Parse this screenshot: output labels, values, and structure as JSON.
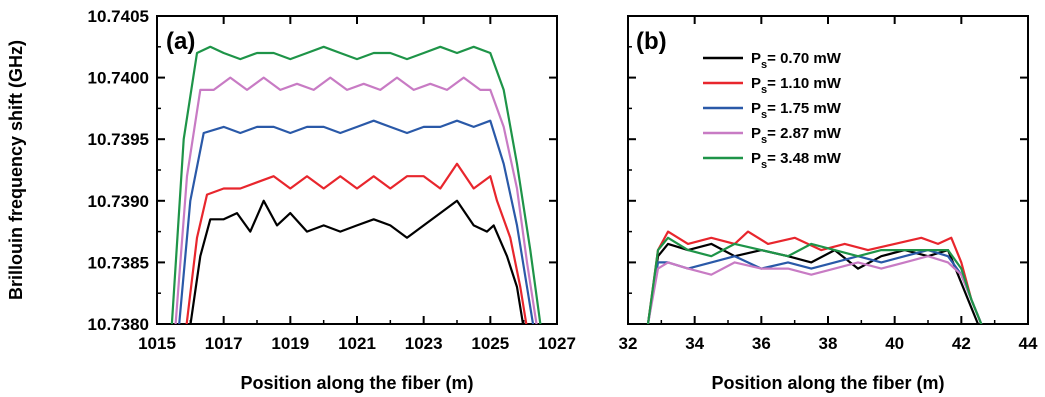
{
  "chart_data": [
    {
      "panel": "(a)",
      "type": "line",
      "xlabel": "Position along the fiber (m)",
      "ylabel": "Brillouin frequency shift (GHz)",
      "xlim": [
        1015,
        1027
      ],
      "ylim": [
        10.738,
        10.7405
      ],
      "xticks": [
        1015,
        1017,
        1019,
        1021,
        1023,
        1025,
        1027
      ],
      "xtick_labels": [
        "1015",
        "1017",
        "1019",
        "1021",
        "1023",
        "1025",
        "1027"
      ],
      "yticks": [
        10.738,
        10.7385,
        10.739,
        10.7395,
        10.74,
        10.7405
      ],
      "ytick_labels": [
        "10.7380",
        "10.7385",
        "10.7390",
        "10.7395",
        "10.7400",
        "10.7405"
      ],
      "grid": false,
      "series": [
        {
          "color": "#000000",
          "x": [
            1015.9,
            1016.3,
            1016.6,
            1017.0,
            1017.4,
            1017.8,
            1018.2,
            1018.6,
            1019.0,
            1019.5,
            1020.0,
            1020.5,
            1021.0,
            1021.5,
            1022.0,
            1022.5,
            1023.0,
            1023.5,
            1024.0,
            1024.5,
            1024.9,
            1025.1,
            1025.5,
            1025.8,
            1026.1
          ],
          "y": [
            10.7378,
            10.73855,
            10.73885,
            10.73885,
            10.7389,
            10.73875,
            10.739,
            10.7388,
            10.7389,
            10.73875,
            10.7388,
            10.73875,
            10.7388,
            10.73885,
            10.7388,
            10.7387,
            10.7388,
            10.7389,
            10.739,
            10.7388,
            10.73875,
            10.7388,
            10.73855,
            10.7383,
            10.7378
          ]
        },
        {
          "color": "#e8262d",
          "x": [
            1015.8,
            1016.2,
            1016.5,
            1017.0,
            1017.5,
            1018.0,
            1018.5,
            1019.0,
            1019.5,
            1020.0,
            1020.5,
            1021.0,
            1021.5,
            1022.0,
            1022.5,
            1023.0,
            1023.5,
            1024.0,
            1024.5,
            1025.0,
            1025.2,
            1025.6,
            1025.9,
            1026.2
          ],
          "y": [
            10.7378,
            10.7387,
            10.73905,
            10.7391,
            10.7391,
            10.73915,
            10.7392,
            10.7391,
            10.7392,
            10.7391,
            10.7392,
            10.7391,
            10.7392,
            10.7391,
            10.7392,
            10.7392,
            10.7391,
            10.7393,
            10.7391,
            10.7392,
            10.739,
            10.7387,
            10.7383,
            10.7378
          ]
        },
        {
          "color": "#2a59a8",
          "x": [
            1015.6,
            1016.0,
            1016.4,
            1017.0,
            1017.5,
            1018.0,
            1018.5,
            1019.0,
            1019.5,
            1020.0,
            1020.5,
            1021.0,
            1021.5,
            1022.0,
            1022.5,
            1023.0,
            1023.5,
            1024.0,
            1024.5,
            1025.0,
            1025.4,
            1025.8,
            1026.1,
            1026.4
          ],
          "y": [
            10.7378,
            10.739,
            10.73955,
            10.7396,
            10.73955,
            10.7396,
            10.7396,
            10.73955,
            10.7396,
            10.7396,
            10.73955,
            10.7396,
            10.73965,
            10.7396,
            10.73955,
            10.7396,
            10.7396,
            10.73965,
            10.7396,
            10.73965,
            10.7393,
            10.7388,
            10.7383,
            10.7378
          ]
        },
        {
          "color": "#c87bc4",
          "x": [
            1015.5,
            1015.9,
            1016.3,
            1016.7,
            1017.2,
            1017.7,
            1018.2,
            1018.7,
            1019.2,
            1019.7,
            1020.2,
            1020.7,
            1021.2,
            1021.7,
            1022.2,
            1022.7,
            1023.2,
            1023.7,
            1024.2,
            1024.7,
            1025.0,
            1025.4,
            1025.8,
            1026.1,
            1026.5
          ],
          "y": [
            10.7378,
            10.7392,
            10.7399,
            10.7399,
            10.74,
            10.7399,
            10.74,
            10.7399,
            10.73995,
            10.7399,
            10.74,
            10.7399,
            10.73995,
            10.7399,
            10.74,
            10.7399,
            10.73995,
            10.7399,
            10.74,
            10.7399,
            10.7399,
            10.7396,
            10.7391,
            10.7385,
            10.7378
          ]
        },
        {
          "color": "#1e9448",
          "x": [
            1015.4,
            1015.8,
            1016.2,
            1016.6,
            1017.0,
            1017.5,
            1018.0,
            1018.5,
            1019.0,
            1019.5,
            1020.0,
            1020.5,
            1021.0,
            1021.5,
            1022.0,
            1022.5,
            1023.0,
            1023.5,
            1024.0,
            1024.5,
            1025.0,
            1025.4,
            1025.8,
            1026.2,
            1026.6
          ],
          "y": [
            10.7378,
            10.7395,
            10.7402,
            10.74025,
            10.7402,
            10.74015,
            10.7402,
            10.7402,
            10.74015,
            10.7402,
            10.74025,
            10.7402,
            10.74015,
            10.7402,
            10.7402,
            10.74015,
            10.7402,
            10.74025,
            10.7402,
            10.74025,
            10.7402,
            10.7399,
            10.7393,
            10.7386,
            10.7378
          ]
        }
      ]
    },
    {
      "panel": "(b)",
      "type": "line",
      "xlabel": "Position along the fiber (m)",
      "xlim": [
        32,
        44
      ],
      "ylim": [
        10.738,
        10.7405
      ],
      "xticks": [
        32,
        34,
        36,
        38,
        40,
        42,
        44
      ],
      "xtick_labels": [
        "32",
        "34",
        "36",
        "38",
        "40",
        "42",
        "44"
      ],
      "grid": false,
      "legend": {
        "position": "top-left",
        "entries": [
          {
            "main": "P",
            "sub": "s",
            "rest": "= 0.70 mW",
            "color": "#000000"
          },
          {
            "main": "P",
            "sub": "s",
            "rest": "= 1.10 mW",
            "color": "#e8262d"
          },
          {
            "main": "P",
            "sub": "s",
            "rest": "= 1.75 mW",
            "color": "#2a59a8"
          },
          {
            "main": "P",
            "sub": "s",
            "rest": "= 2.87 mW",
            "color": "#c87bc4"
          },
          {
            "main": "P",
            "sub": "s",
            "rest": "= 3.48 mW",
            "color": "#1e9448"
          }
        ]
      },
      "series": [
        {
          "color": "#000000",
          "x": [
            32.6,
            32.9,
            33.2,
            33.8,
            34.5,
            35.2,
            36.0,
            36.8,
            37.5,
            38.2,
            38.9,
            39.6,
            40.3,
            41.0,
            41.6,
            41.9,
            42.2,
            42.5
          ],
          "y": [
            10.738,
            10.73855,
            10.73865,
            10.7386,
            10.73865,
            10.73855,
            10.7386,
            10.73855,
            10.7385,
            10.7386,
            10.73845,
            10.73855,
            10.7386,
            10.73855,
            10.7386,
            10.7384,
            10.7382,
            10.738
          ]
        },
        {
          "color": "#e8262d",
          "x": [
            32.6,
            32.9,
            33.2,
            33.8,
            34.5,
            35.2,
            35.6,
            36.2,
            37.0,
            37.8,
            38.5,
            39.2,
            40.0,
            40.8,
            41.3,
            41.7,
            42.0,
            42.3,
            42.6
          ],
          "y": [
            10.738,
            10.7386,
            10.73875,
            10.73865,
            10.7387,
            10.73865,
            10.73875,
            10.73865,
            10.7387,
            10.7386,
            10.73865,
            10.7386,
            10.73865,
            10.7387,
            10.73865,
            10.7387,
            10.7385,
            10.7382,
            10.738
          ]
        },
        {
          "color": "#2a59a8",
          "x": [
            32.6,
            32.9,
            33.2,
            33.8,
            34.5,
            35.2,
            36.0,
            36.8,
            37.5,
            38.2,
            38.9,
            39.6,
            40.3,
            41.0,
            41.6,
            42.0,
            42.3,
            42.6
          ],
          "y": [
            10.738,
            10.7385,
            10.7385,
            10.73845,
            10.7385,
            10.73855,
            10.73845,
            10.7385,
            10.73845,
            10.7385,
            10.73855,
            10.7385,
            10.73855,
            10.7386,
            10.73855,
            10.7384,
            10.7382,
            10.738
          ]
        },
        {
          "color": "#c87bc4",
          "x": [
            32.6,
            32.9,
            33.2,
            33.8,
            34.5,
            35.2,
            36.0,
            36.8,
            37.5,
            38.2,
            38.9,
            39.6,
            40.3,
            41.0,
            41.6,
            42.0,
            42.3,
            42.6
          ],
          "y": [
            10.738,
            10.73845,
            10.7385,
            10.73845,
            10.7384,
            10.7385,
            10.73845,
            10.73845,
            10.7384,
            10.73845,
            10.7385,
            10.73845,
            10.7385,
            10.73855,
            10.7385,
            10.7384,
            10.7382,
            10.738
          ]
        },
        {
          "color": "#1e9448",
          "x": [
            32.6,
            32.9,
            33.2,
            33.8,
            34.5,
            35.2,
            36.0,
            36.8,
            37.5,
            38.2,
            38.9,
            39.6,
            40.3,
            41.0,
            41.6,
            42.0,
            42.3,
            42.6
          ],
          "y": [
            10.738,
            10.7386,
            10.7387,
            10.7386,
            10.73855,
            10.73865,
            10.7386,
            10.73855,
            10.73865,
            10.7386,
            10.73855,
            10.7386,
            10.7386,
            10.7386,
            10.7386,
            10.73845,
            10.7382,
            10.738
          ]
        }
      ]
    }
  ]
}
